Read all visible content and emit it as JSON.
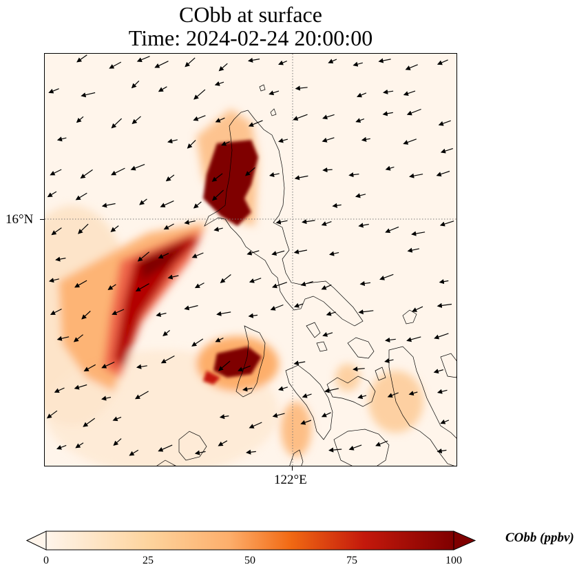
{
  "title": {
    "line1": "CObb at surface",
    "line2": "Time: 2024-02-24 20:00:00"
  },
  "map": {
    "variable": "CObb",
    "level": "surface",
    "lat_tick": "16°N",
    "lon_tick": "122°E",
    "gridlines": "dotted",
    "coastlines": true,
    "wind_vectors": true,
    "colormap": "OrRd",
    "colors": {
      "low": "#fff5eb",
      "mid": "#fdbe85",
      "high": "#e34a33",
      "max": "#7f0000"
    }
  },
  "colorbar": {
    "label": "CObb (ppbv)",
    "ticks": [
      "0",
      "25",
      "50",
      "75",
      "100"
    ],
    "range": [
      0,
      100
    ],
    "extend": "both"
  }
}
